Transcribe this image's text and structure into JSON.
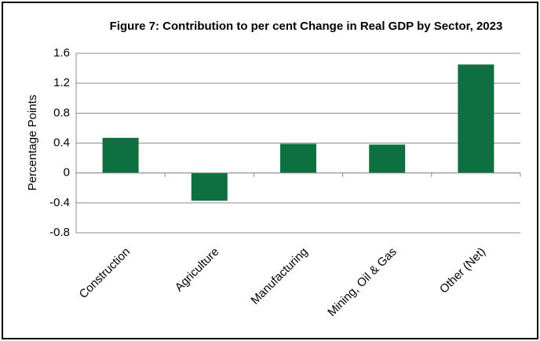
{
  "chart_data": {
    "type": "bar",
    "title": "Figure 7: Contribution to per cent Change in Real GDP by Sector, 2023",
    "y_label": "Percentage Points",
    "categories": [
      "Construction",
      "Agriculture",
      "Manufacturing",
      "Mining, Oil & Gas",
      "Other (Net)"
    ],
    "values": [
      0.47,
      -0.37,
      0.39,
      0.38,
      1.45
    ],
    "color": "#0e7040",
    "ylim": [
      -0.8,
      1.6
    ],
    "yticks": [
      1.6,
      1.2,
      0.8,
      0.4,
      0,
      -0.4,
      -0.8
    ],
    "grid": true
  }
}
